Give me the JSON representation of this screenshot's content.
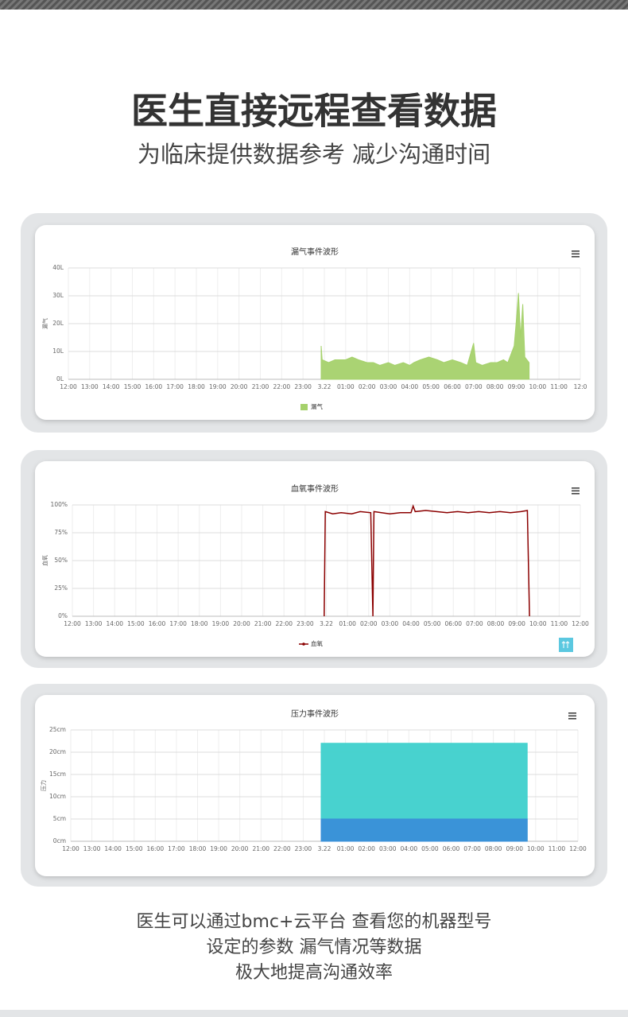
{
  "header": {
    "title": "医生直接远程查看数据",
    "subtitle": "为临床提供数据参考 减少沟通时间"
  },
  "chart_data": [
    {
      "type": "area",
      "title": "漏气事件波形",
      "y_label": "漏气",
      "grid": true,
      "legend": "bottom",
      "xlim": [
        0,
        24
      ],
      "xticks": [
        {
          "value": 0,
          "label": "12:00"
        },
        {
          "value": 1,
          "label": "13:00"
        },
        {
          "value": 2,
          "label": "14:00"
        },
        {
          "value": 3,
          "label": "15:00"
        },
        {
          "value": 4,
          "label": "16:00"
        },
        {
          "value": 5,
          "label": "17:00"
        },
        {
          "value": 6,
          "label": "18:00"
        },
        {
          "value": 7,
          "label": "19:00"
        },
        {
          "value": 8,
          "label": "20:00"
        },
        {
          "value": 9,
          "label": "21:00"
        },
        {
          "value": 10,
          "label": "22:00"
        },
        {
          "value": 11,
          "label": "23:00"
        },
        {
          "value": 12,
          "label": "3.22"
        },
        {
          "value": 13,
          "label": "01:00"
        },
        {
          "value": 14,
          "label": "02:00"
        },
        {
          "value": 15,
          "label": "03:00"
        },
        {
          "value": 16,
          "label": "04:00"
        },
        {
          "value": 17,
          "label": "05:00"
        },
        {
          "value": 18,
          "label": "06:00"
        },
        {
          "value": 19,
          "label": "07:00"
        },
        {
          "value": 20,
          "label": "08:00"
        },
        {
          "value": 21,
          "label": "09:00"
        },
        {
          "value": 22,
          "label": "10:00"
        },
        {
          "value": 23,
          "label": "11:00"
        },
        {
          "value": 24,
          "label": "12:0"
        }
      ],
      "ylim": [
        0,
        40
      ],
      "yticks": [
        {
          "value": 0,
          "label": "0L"
        },
        {
          "value": 10,
          "label": "10L"
        },
        {
          "value": 20,
          "label": "20L"
        },
        {
          "value": 30,
          "label": "30L"
        },
        {
          "value": 40,
          "label": "40L"
        }
      ],
      "x": [
        11.85,
        11.9,
        12.2,
        12.5,
        13,
        13.3,
        13.6,
        14,
        14.3,
        14.6,
        15,
        15.3,
        15.7,
        16,
        16.2,
        16.5,
        16.9,
        17.3,
        17.6,
        18,
        18.4,
        18.7,
        19,
        19.1,
        19.4,
        19.8,
        20.1,
        20.4,
        20.6,
        20.9,
        21,
        21.1,
        21.2,
        21.3,
        21.4,
        21.6
      ],
      "series": [
        {
          "name": "漏气",
          "color": "#a5d16b",
          "values": [
            12,
            7,
            6,
            7,
            7,
            8,
            7,
            6,
            6,
            5,
            6,
            5,
            6,
            5,
            6,
            7,
            8,
            7,
            6,
            7,
            6,
            5,
            13,
            6,
            5,
            6,
            6,
            7,
            6,
            12,
            21,
            31,
            15,
            27,
            8,
            6
          ]
        }
      ]
    },
    {
      "type": "line",
      "title": "血氧事件波形",
      "y_label": "血氧",
      "grid": true,
      "legend": "bottom",
      "xlim": [
        0,
        24
      ],
      "xticks": [
        {
          "value": 0,
          "label": "12:00"
        },
        {
          "value": 1,
          "label": "13:00"
        },
        {
          "value": 2,
          "label": "14:00"
        },
        {
          "value": 3,
          "label": "15:00"
        },
        {
          "value": 4,
          "label": "16:00"
        },
        {
          "value": 5,
          "label": "17:00"
        },
        {
          "value": 6,
          "label": "18:00"
        },
        {
          "value": 7,
          "label": "19:00"
        },
        {
          "value": 8,
          "label": "20:00"
        },
        {
          "value": 9,
          "label": "21:00"
        },
        {
          "value": 10,
          "label": "22:00"
        },
        {
          "value": 11,
          "label": "23:00"
        },
        {
          "value": 12,
          "label": "3.22"
        },
        {
          "value": 13,
          "label": "01:00"
        },
        {
          "value": 14,
          "label": "02:00"
        },
        {
          "value": 15,
          "label": "03:00"
        },
        {
          "value": 16,
          "label": "04:00"
        },
        {
          "value": 17,
          "label": "05:00"
        },
        {
          "value": 18,
          "label": "06:00"
        },
        {
          "value": 19,
          "label": "07:00"
        },
        {
          "value": 20,
          "label": "08:00"
        },
        {
          "value": 21,
          "label": "09:00"
        },
        {
          "value": 22,
          "label": "10:00"
        },
        {
          "value": 23,
          "label": "11:00"
        },
        {
          "value": 24,
          "label": "12:00"
        }
      ],
      "ylim": [
        0,
        100
      ],
      "yticks": [
        {
          "value": 0,
          "label": "0%"
        },
        {
          "value": 25,
          "label": "25%"
        },
        {
          "value": 50,
          "label": "50%"
        },
        {
          "value": 75,
          "label": "75%"
        },
        {
          "value": 100,
          "label": "100%"
        }
      ],
      "x": [
        11.9,
        11.95,
        12.3,
        12.7,
        13.2,
        13.6,
        14.1,
        14.2,
        14.25,
        14.6,
        15,
        15.5,
        16,
        16.1,
        16.2,
        16.7,
        17.2,
        17.7,
        18.2,
        18.7,
        19.2,
        19.7,
        20.2,
        20.7,
        21.2,
        21.5,
        21.6
      ],
      "series": [
        {
          "name": "血氧",
          "color": "#8b0000",
          "values": [
            0,
            94,
            92,
            93,
            92,
            94,
            93,
            0,
            94,
            93,
            92,
            93,
            93,
            99,
            94,
            95,
            94,
            93,
            94,
            93,
            94,
            93,
            94,
            93,
            94,
            95,
            0
          ]
        }
      ]
    },
    {
      "type": "area",
      "title": "压力事件波形",
      "y_label": "压力",
      "grid": true,
      "xlim": [
        0,
        24
      ],
      "xticks": [
        {
          "value": 0,
          "label": "12:00"
        },
        {
          "value": 1,
          "label": "13:00"
        },
        {
          "value": 2,
          "label": "14:00"
        },
        {
          "value": 3,
          "label": "15:00"
        },
        {
          "value": 4,
          "label": "16:00"
        },
        {
          "value": 5,
          "label": "17:00"
        },
        {
          "value": 6,
          "label": "18:00"
        },
        {
          "value": 7,
          "label": "19:00"
        },
        {
          "value": 8,
          "label": "20:00"
        },
        {
          "value": 9,
          "label": "21:00"
        },
        {
          "value": 10,
          "label": "22:00"
        },
        {
          "value": 11,
          "label": "23:00"
        },
        {
          "value": 12,
          "label": "3.22"
        },
        {
          "value": 13,
          "label": "01:00"
        },
        {
          "value": 14,
          "label": "02:00"
        },
        {
          "value": 15,
          "label": "03:00"
        },
        {
          "value": 16,
          "label": "04:00"
        },
        {
          "value": 17,
          "label": "05:00"
        },
        {
          "value": 18,
          "label": "06:00"
        },
        {
          "value": 19,
          "label": "07:00"
        },
        {
          "value": 20,
          "label": "08:00"
        },
        {
          "value": 21,
          "label": "09:00"
        },
        {
          "value": 22,
          "label": "10:00"
        },
        {
          "value": 23,
          "label": "11:00"
        },
        {
          "value": 24,
          "label": "12:00"
        }
      ],
      "ylim": [
        0,
        25
      ],
      "yticks": [
        {
          "value": 0,
          "label": "0cm"
        },
        {
          "value": 5,
          "label": "5cm"
        },
        {
          "value": 10,
          "label": "10cm"
        },
        {
          "value": 15,
          "label": "15cm"
        },
        {
          "value": 20,
          "label": "20cm"
        },
        {
          "value": 25,
          "label": "25cm"
        }
      ],
      "x": [
        11.85,
        16,
        20.3,
        21.6
      ],
      "series": [
        {
          "color": "#3ed0cc",
          "values": [
            22,
            22,
            22,
            22
          ]
        },
        {
          "color": "#3a8fd8",
          "values": [
            5,
            5,
            5,
            5
          ]
        }
      ]
    }
  ],
  "footer": {
    "lines": [
      "医生可以通过bmc+云平台 查看您的机器型号",
      "设定的参数 漏气情况等数据",
      "极大地提高沟通效率"
    ]
  }
}
